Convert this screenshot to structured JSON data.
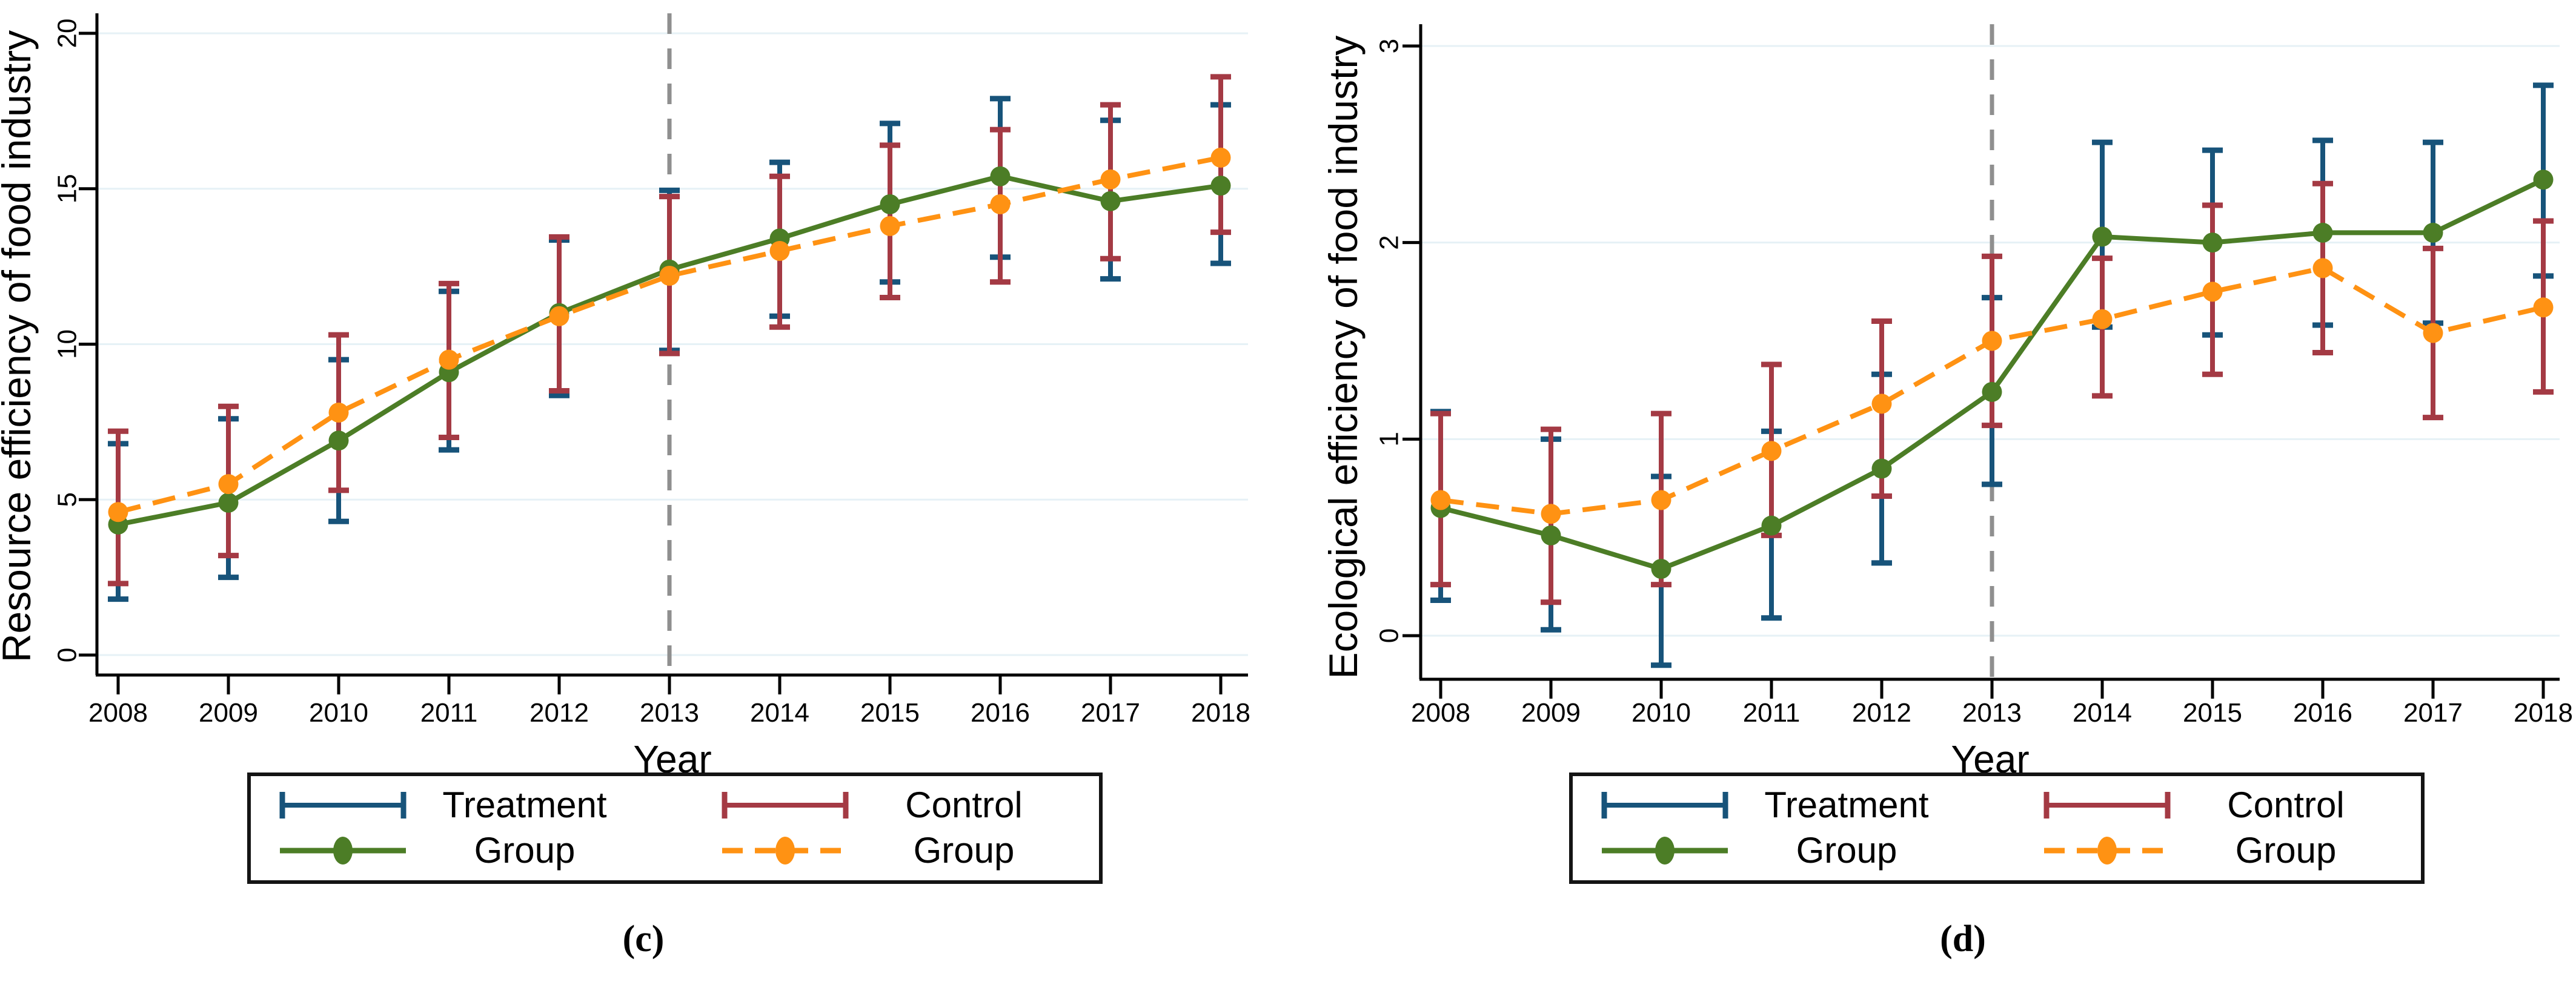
{
  "figure": {
    "background": "#ffffff",
    "captions": {
      "left": "(c)",
      "right": "(d)"
    },
    "legend": {
      "rows": [
        {
          "col1": "Treatment",
          "col2": "Control"
        },
        {
          "col1": "Group",
          "col2": "Group"
        }
      ],
      "symbols": {
        "treatment_ci": "navy-error-bar",
        "control_ci": "maroon-error-bar",
        "treatment_line": "green-solid-line-dot",
        "control_line": "orange-dashed-line-dot"
      }
    },
    "colors": {
      "treatment_line": "#4c7d26",
      "treatment_ci": "#17537a",
      "control_line": "#ff9213",
      "control_ci": "#a43a44",
      "gridline": "#e6f1f6",
      "reference_line": "#8f8f8f",
      "axis": "#000000",
      "text": "#000000"
    }
  },
  "chart_data": [
    {
      "type": "line",
      "caption": "(c)",
      "title": "",
      "xlabel": "Year",
      "ylabel": "Resource efficiency of food industry",
      "x": [
        2008,
        2009,
        2010,
        2011,
        2012,
        2013,
        2014,
        2015,
        2016,
        2017,
        2018
      ],
      "yticks": [
        0,
        5,
        10,
        15,
        20
      ],
      "ylim": [
        0,
        20
      ],
      "grid": true,
      "legend_position": "below",
      "reference_line_x": 2013,
      "series": [
        {
          "name": "Treatment Group",
          "line": "solid",
          "color_key": "treatment_line",
          "ci_color_key": "treatment_ci",
          "values": [
            4.2,
            4.9,
            6.9,
            9.1,
            11.0,
            12.4,
            13.4,
            14.5,
            15.4,
            14.6,
            15.1
          ],
          "ci_low": [
            1.8,
            2.5,
            4.3,
            6.6,
            8.35,
            9.8,
            10.9,
            12.0,
            12.8,
            12.1,
            12.6
          ],
          "ci_high": [
            6.8,
            7.6,
            9.5,
            11.7,
            13.35,
            14.95,
            15.85,
            17.1,
            17.9,
            17.2,
            17.7
          ]
        },
        {
          "name": "Control Group",
          "line": "dashed",
          "color_key": "control_line",
          "ci_color_key": "control_ci",
          "values": [
            4.6,
            5.5,
            7.8,
            9.5,
            10.9,
            12.2,
            13.0,
            13.8,
            14.5,
            15.3,
            16.0
          ],
          "ci_low": [
            2.3,
            3.2,
            5.3,
            7.0,
            8.5,
            9.7,
            10.55,
            11.5,
            12.0,
            12.75,
            13.6
          ],
          "ci_high": [
            7.2,
            8.0,
            10.3,
            11.95,
            13.45,
            14.75,
            15.4,
            16.4,
            16.9,
            17.7,
            18.6
          ]
        }
      ]
    },
    {
      "type": "line",
      "caption": "(d)",
      "title": "",
      "xlabel": "Year",
      "ylabel": "Ecological efficiency of food industry",
      "x": [
        2008,
        2009,
        2010,
        2011,
        2012,
        2013,
        2014,
        2015,
        2016,
        2017,
        2018
      ],
      "yticks": [
        0,
        1,
        2,
        3
      ],
      "ylim": [
        -0.2,
        3
      ],
      "grid": true,
      "legend_position": "below",
      "reference_line_x": 2013,
      "series": [
        {
          "name": "Treatment Group",
          "line": "solid",
          "color_key": "treatment_line",
          "ci_color_key": "treatment_ci",
          "values": [
            0.65,
            0.51,
            0.34,
            0.56,
            0.85,
            1.24,
            2.03,
            2.0,
            2.05,
            2.05,
            2.32
          ],
          "ci_low": [
            0.18,
            0.03,
            -0.15,
            0.09,
            0.37,
            0.77,
            1.57,
            1.53,
            1.58,
            1.59,
            1.83
          ],
          "ci_high": [
            1.14,
            1.0,
            0.81,
            1.04,
            1.33,
            1.72,
            2.51,
            2.47,
            2.52,
            2.51,
            2.8
          ]
        },
        {
          "name": "Control Group",
          "line": "dashed",
          "color_key": "control_line",
          "ci_color_key": "control_ci",
          "values": [
            0.69,
            0.62,
            0.69,
            0.94,
            1.18,
            1.5,
            1.61,
            1.75,
            1.87,
            1.54,
            1.67
          ],
          "ci_low": [
            0.26,
            0.17,
            0.26,
            0.51,
            0.71,
            1.07,
            1.22,
            1.33,
            1.44,
            1.11,
            1.24
          ],
          "ci_high": [
            1.13,
            1.05,
            1.13,
            1.38,
            1.6,
            1.93,
            1.92,
            2.19,
            2.3,
            1.97,
            2.11
          ]
        }
      ]
    }
  ]
}
